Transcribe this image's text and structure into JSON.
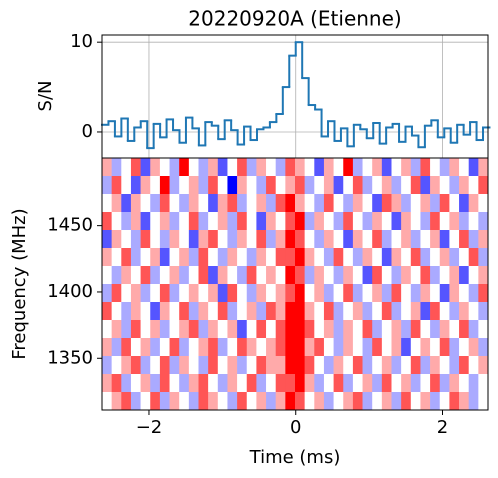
{
  "chart_data": [
    {
      "type": "step",
      "title": "20220920A (Etienne)",
      "ylabel": "S/N",
      "color": "#1f77b4",
      "grid": true,
      "x": [
        -2.596,
        -2.508,
        -2.42,
        -2.332,
        -2.244,
        -2.156,
        -2.068,
        -1.98,
        -1.892,
        -1.804,
        -1.716,
        -1.628,
        -1.54,
        -1.452,
        -1.364,
        -1.276,
        -1.188,
        -1.1,
        -1.012,
        -0.924,
        -0.836,
        -0.748,
        -0.66,
        -0.572,
        -0.484,
        -0.396,
        -0.308,
        -0.22,
        -0.132,
        -0.044,
        0.044,
        0.132,
        0.22,
        0.308,
        0.396,
        0.484,
        0.572,
        0.66,
        0.748,
        0.836,
        0.924,
        1.012,
        1.1,
        1.188,
        1.276,
        1.364,
        1.452,
        1.54,
        1.628,
        1.716,
        1.804,
        1.892,
        1.98,
        2.068,
        2.156,
        2.244,
        2.332,
        2.42,
        2.508,
        2.596
      ],
      "values": [
        0.8,
        1.2,
        -0.5,
        1.5,
        -1,
        0.5,
        1.2,
        -1.8,
        0.9,
        -0.6,
        1.4,
        0.2,
        -1.2,
        1.6,
        0.4,
        -1.5,
        1.1,
        0.7,
        -0.8,
        1.3,
        0.2,
        -1.4,
        0.6,
        -0.9,
        0.3,
        0.5,
        1.1,
        2,
        5,
        8.5,
        10,
        6,
        3,
        2.5,
        -0.5,
        1.2,
        -1,
        0.4,
        -1.6,
        0.8,
        0.3,
        -0.7,
        1,
        -1.3,
        0.5,
        0.9,
        -1.1,
        0.6,
        -0.4,
        -1.7,
        0.7,
        1.3,
        -0.6,
        0.4,
        -1.2,
        0.8,
        -0.3,
        1.1,
        -0.9,
        0.5
      ],
      "xlim": [
        -2.64,
        2.62
      ],
      "xticks": [
        -2,
        0,
        2
      ],
      "ylim": [
        -2.9,
        10.8
      ],
      "yticks": [
        0,
        10
      ]
    },
    {
      "type": "heatmap",
      "xlabel": "Time (ms)",
      "ylabel": "Frequency (MHz)",
      "colormap": "bwr",
      "clim": [
        -3,
        3
      ],
      "xlim": [
        -2.64,
        2.62
      ],
      "xticks": [
        {
          "value": -2,
          "label": "−2"
        },
        0,
        2
      ],
      "ylim": [
        1311,
        1501
      ],
      "yticks": [
        1350,
        1400,
        1450
      ],
      "values": [
        [
          1,
          -1,
          0,
          2,
          -2,
          1,
          0,
          -1,
          3,
          0,
          -1,
          1,
          -2,
          0,
          2,
          -1,
          1,
          0,
          -1,
          2,
          1,
          0,
          -2,
          1,
          0,
          3,
          -1,
          0,
          1,
          -2,
          0,
          1,
          -1,
          2,
          0,
          -1,
          1,
          0,
          -2,
          1
        ],
        [
          -1,
          2,
          0,
          -2,
          1,
          0,
          3,
          -1,
          0,
          1,
          -1,
          2,
          0,
          -3,
          1,
          0,
          -1,
          2,
          0,
          1,
          2,
          -1,
          0,
          1,
          -2,
          0,
          2,
          -1,
          0,
          1,
          -1,
          0,
          2,
          -2,
          1,
          0,
          -1,
          1,
          0,
          2
        ],
        [
          0,
          1,
          -2,
          1,
          0,
          -1,
          2,
          0,
          -1,
          1,
          0,
          -2,
          1,
          2,
          -1,
          0,
          1,
          -1,
          2,
          3,
          1,
          0,
          -1,
          2,
          0,
          -1,
          1,
          0,
          -2,
          2,
          1,
          -1,
          0,
          1,
          -1,
          2,
          0,
          -2,
          1,
          0
        ],
        [
          2,
          0,
          -1,
          1,
          -2,
          0,
          1,
          -1,
          0,
          2,
          -1,
          0,
          1,
          -1,
          2,
          0,
          -2,
          1,
          0,
          2,
          3,
          -1,
          1,
          0,
          -1,
          2,
          0,
          -1,
          1,
          0,
          -2,
          1,
          0,
          -1,
          2,
          0,
          1,
          -1,
          0,
          -1
        ],
        [
          -2,
          1,
          0,
          -1,
          2,
          0,
          -1,
          1,
          0,
          -2,
          1,
          2,
          0,
          -1,
          1,
          0,
          2,
          -1,
          1,
          3,
          2,
          0,
          -1,
          1,
          0,
          -2,
          1,
          0,
          2,
          -1,
          0,
          1,
          -1,
          0,
          1,
          -2,
          0,
          2,
          -1,
          1
        ],
        [
          1,
          0,
          2,
          -1,
          0,
          1,
          -2,
          0,
          1,
          -1,
          2,
          0,
          -1,
          1,
          0,
          -1,
          1,
          0,
          2,
          2,
          3,
          1,
          0,
          -1,
          2,
          0,
          -1,
          1,
          0,
          -2,
          1,
          0,
          2,
          -1,
          0,
          1,
          -1,
          0,
          2,
          -1
        ],
        [
          0,
          -1,
          1,
          0,
          2,
          -1,
          0,
          1,
          -1,
          0,
          2,
          -2,
          1,
          0,
          -1,
          2,
          0,
          1,
          0,
          3,
          2,
          -1,
          1,
          0,
          -1,
          1,
          0,
          -2,
          2,
          0,
          -1,
          1,
          0,
          2,
          -1,
          0,
          1,
          -2,
          0,
          1
        ],
        [
          -1,
          2,
          0,
          1,
          -1,
          0,
          2,
          -1,
          0,
          1,
          0,
          1,
          -2,
          2,
          0,
          -1,
          1,
          0,
          1,
          2,
          3,
          0,
          1,
          -1,
          0,
          2,
          -1,
          0,
          1,
          -1,
          2,
          0,
          -1,
          1,
          0,
          -2,
          1,
          0,
          -1,
          2
        ],
        [
          2,
          0,
          -1,
          1,
          0,
          -2,
          1,
          0,
          2,
          -1,
          1,
          0,
          2,
          -1,
          0,
          1,
          -1,
          2,
          1,
          3,
          3,
          1,
          0,
          2,
          -1,
          0,
          1,
          -1,
          0,
          2,
          -1,
          0,
          1,
          -2,
          2,
          0,
          -1,
          1,
          0,
          -1
        ],
        [
          0,
          1,
          -1,
          2,
          0,
          1,
          -1,
          0,
          1,
          2,
          -1,
          1,
          0,
          1,
          -2,
          0,
          2,
          0,
          2,
          3,
          3,
          2,
          0,
          1,
          -1,
          1,
          0,
          2,
          -1,
          0,
          1,
          -1,
          2,
          0,
          -1,
          1,
          0,
          2,
          -1,
          0
        ],
        [
          1,
          -1,
          2,
          0,
          1,
          -1,
          0,
          2,
          -1,
          0,
          1,
          2,
          -1,
          0,
          2,
          1,
          0,
          1,
          2,
          3,
          3,
          1,
          2,
          0,
          -1,
          1,
          0,
          -1,
          2,
          0,
          1,
          -2,
          0,
          1,
          0,
          2,
          -1,
          0,
          1,
          -1
        ],
        [
          -1,
          0,
          1,
          2,
          -1,
          0,
          2,
          -1,
          1,
          0,
          -1,
          2,
          0,
          1,
          -1,
          0,
          2,
          1,
          1,
          3,
          3,
          2,
          0,
          -1,
          1,
          0,
          2,
          -1,
          0,
          1,
          -1,
          0,
          2,
          -1,
          1,
          0,
          -1,
          2,
          0,
          1
        ],
        [
          1,
          2,
          -1,
          0,
          1,
          -1,
          2,
          0,
          -1,
          1,
          2,
          0,
          -1,
          1,
          0,
          2,
          -1,
          0,
          2,
          2,
          3,
          1,
          -1,
          0,
          2,
          -1,
          0,
          1,
          -1,
          2,
          0,
          1,
          -1,
          0,
          2,
          -1,
          1,
          0,
          -1,
          0
        ],
        [
          0,
          1,
          2,
          -1,
          0,
          2,
          -1,
          1,
          0,
          -1,
          2,
          1,
          0,
          -1,
          2,
          0,
          1,
          -1,
          1,
          3,
          2,
          0,
          1,
          -1,
          0,
          1,
          2,
          -1,
          0,
          1,
          -1,
          2,
          0,
          1,
          -1,
          0,
          2,
          1,
          -1,
          0
        ]
      ]
    }
  ]
}
